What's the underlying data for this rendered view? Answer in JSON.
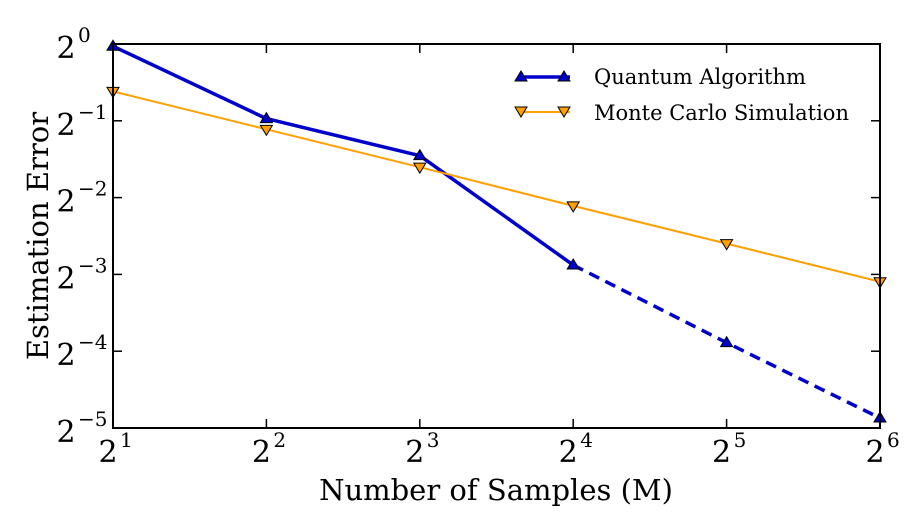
{
  "chart_data": {
    "type": "line",
    "xscale": "log2",
    "yscale": "log2",
    "xlabel": "Number of Samples (M)",
    "ylabel": "Estimation Error",
    "x_ticks": [
      {
        "base": "2",
        "exp": "1",
        "value": 2
      },
      {
        "base": "2",
        "exp": "2",
        "value": 4
      },
      {
        "base": "2",
        "exp": "3",
        "value": 8
      },
      {
        "base": "2",
        "exp": "4",
        "value": 16
      },
      {
        "base": "2",
        "exp": "5",
        "value": 32
      },
      {
        "base": "2",
        "exp": "6",
        "value": 64
      }
    ],
    "y_ticks": [
      {
        "base": "2",
        "exp": "0",
        "value": 1
      },
      {
        "base": "2",
        "exp": "−1",
        "value": 0.5
      },
      {
        "base": "2",
        "exp": "−2",
        "value": 0.25
      },
      {
        "base": "2",
        "exp": "−3",
        "value": 0.125
      },
      {
        "base": "2",
        "exp": "−4",
        "value": 0.0625
      },
      {
        "base": "2",
        "exp": "−5",
        "value": 0.03125
      }
    ],
    "xlim_log2": [
      1,
      6
    ],
    "ylim_log2": [
      -5,
      0
    ],
    "legend_position": "top-right",
    "series": [
      {
        "name": "Quantum Algorithm",
        "color": "#0000cc",
        "marker": "triangle-up",
        "line_style": "solid-then-dashed",
        "dashed_from_x": 16,
        "x": [
          2,
          4,
          8,
          16,
          32,
          64
        ],
        "y": [
          0.98,
          0.51,
          0.365,
          0.136,
          0.0675,
          0.0342
        ]
      },
      {
        "name": "Monte Carlo Simulation",
        "color": "#ff9f00",
        "marker": "triangle-down",
        "line_style": "solid",
        "x": [
          2,
          4,
          8,
          16,
          32,
          64
        ],
        "y": [
          0.652,
          0.463,
          0.329,
          0.232,
          0.165,
          0.117
        ]
      }
    ]
  }
}
